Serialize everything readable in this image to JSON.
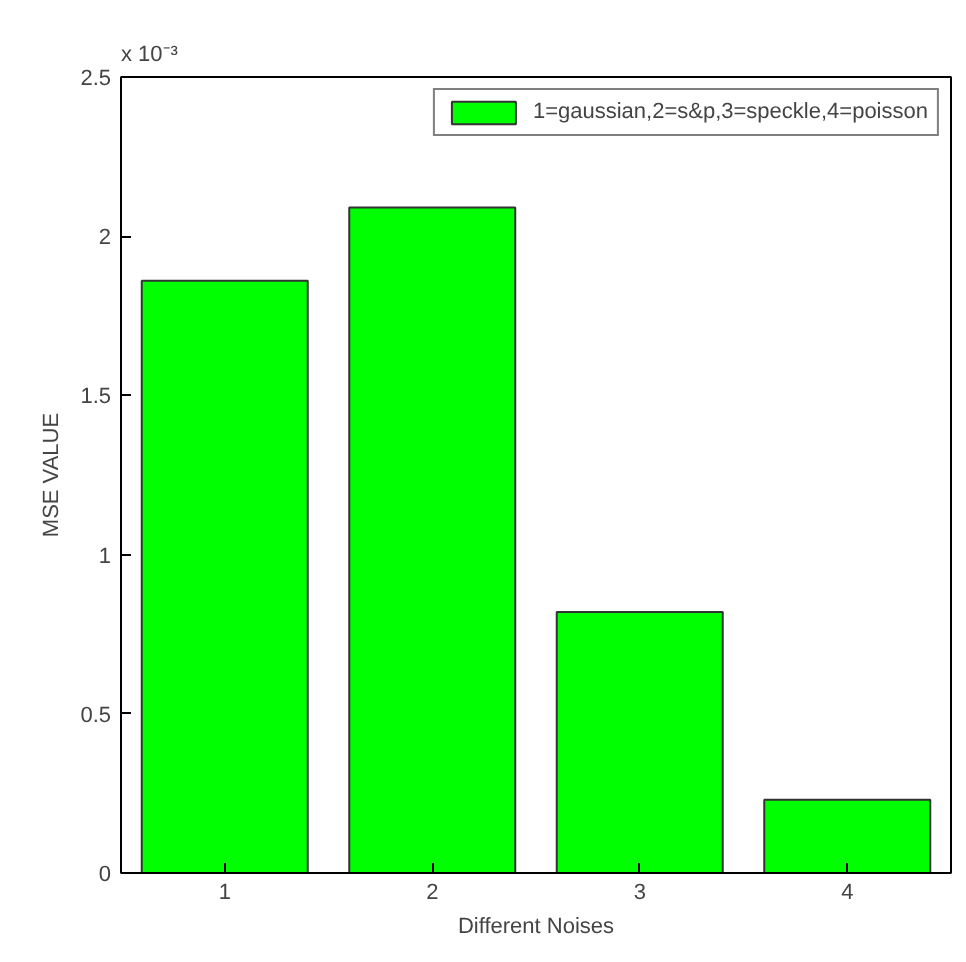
{
  "chart_data": {
    "type": "bar",
    "xlabel": "Different Noises",
    "ylabel": "MSE VALUE",
    "annotations": [
      "x 10⁻³"
    ],
    "categories": [
      "1",
      "2",
      "3",
      "4"
    ],
    "series": [
      {
        "name": "1=gaussian,2=s&p,3=speckle,4=poisson",
        "color": "#00ff00",
        "values": [
          1.86,
          2.09,
          0.82,
          0.23
        ]
      }
    ],
    "ylim": [
      0,
      2.5
    ],
    "yticks": [
      0,
      0.5,
      1,
      1.5,
      2,
      2.5
    ],
    "grid": false,
    "legend": "top right"
  }
}
